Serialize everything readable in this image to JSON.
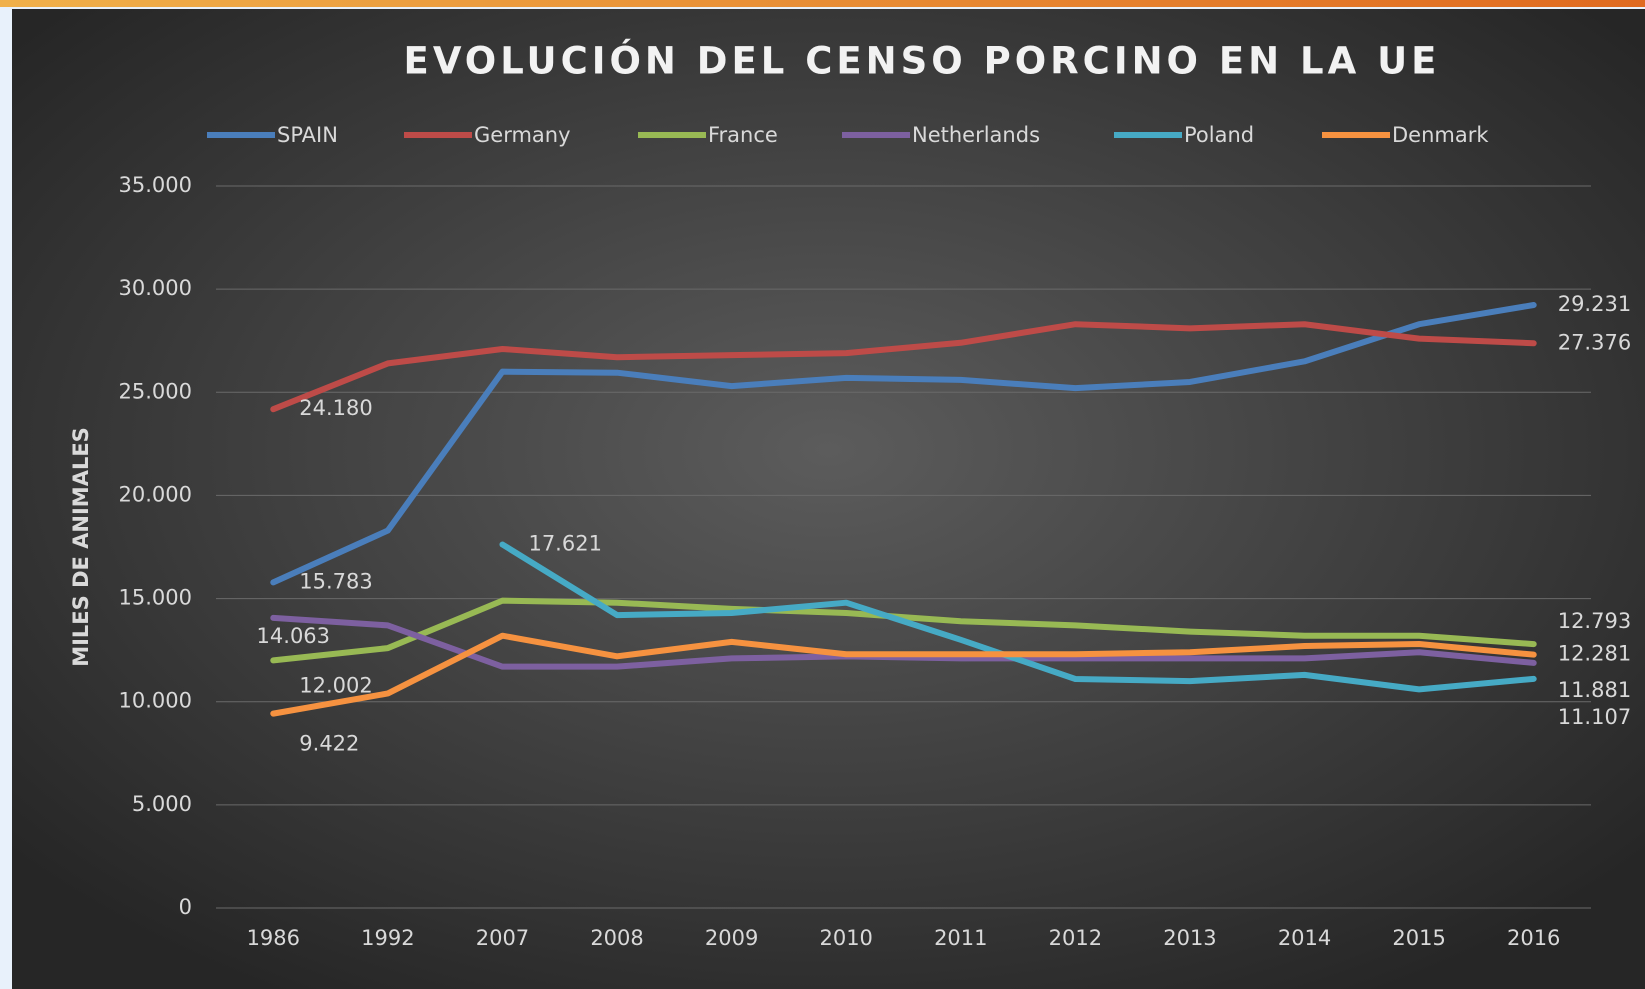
{
  "chart_data": {
    "type": "line",
    "title": "EVOLUCIÓN DEL CENSO PORCINO EN LA UE",
    "y_label": "MILES DE ANIMALES",
    "categories": [
      "1986",
      "1992",
      "2007",
      "2008",
      "2009",
      "2010",
      "2011",
      "2012",
      "2013",
      "2014",
      "2015",
      "2016"
    ],
    "series": [
      {
        "name": "SPAIN",
        "color": "#4a7ebb",
        "values": [
          15783,
          18300,
          26000,
          25950,
          25300,
          25700,
          25600,
          25200,
          25500,
          26500,
          28300,
          29231
        ],
        "value_labels": [
          "15.783",
          null,
          null,
          null,
          null,
          null,
          null,
          null,
          null,
          null,
          null,
          "29.231"
        ]
      },
      {
        "name": "Germany",
        "color": "#be4b48",
        "values": [
          24180,
          26400,
          27100,
          26700,
          26800,
          26900,
          27400,
          28300,
          28100,
          28300,
          27600,
          27376
        ],
        "value_labels": [
          "24.180",
          null,
          null,
          null,
          null,
          null,
          null,
          null,
          null,
          null,
          null,
          "27.376"
        ]
      },
      {
        "name": "France",
        "color": "#98b954",
        "values": [
          12002,
          12600,
          14900,
          14800,
          14500,
          14300,
          13900,
          13700,
          13400,
          13200,
          13200,
          12793
        ],
        "value_labels": [
          "12.002",
          null,
          null,
          null,
          null,
          null,
          null,
          null,
          null,
          null,
          null,
          "12.793"
        ]
      },
      {
        "name": "Netherlands",
        "color": "#7d60a0",
        "values": [
          14063,
          13700,
          11700,
          11700,
          12100,
          12200,
          12100,
          12100,
          12100,
          12100,
          12400,
          11881
        ],
        "value_labels": [
          "14.063",
          null,
          null,
          null,
          null,
          null,
          null,
          null,
          null,
          null,
          null,
          "11.881"
        ]
      },
      {
        "name": "Poland",
        "color": "#46aac5",
        "values": [
          null,
          null,
          17621,
          14200,
          14300,
          14800,
          13000,
          11100,
          11000,
          11300,
          10600,
          11107
        ],
        "value_labels": [
          null,
          null,
          "17.621",
          null,
          null,
          null,
          null,
          null,
          null,
          null,
          null,
          "11.107"
        ]
      },
      {
        "name": "Denmark",
        "color": "#f69240",
        "values": [
          9422,
          10400,
          13200,
          12200,
          12900,
          12300,
          12300,
          12300,
          12400,
          12700,
          12800,
          12281
        ],
        "value_labels": [
          "9.422",
          null,
          null,
          null,
          null,
          null,
          null,
          null,
          null,
          null,
          null,
          "12.281"
        ]
      }
    ],
    "ylim": [
      0,
      35000
    ],
    "yticks": [
      0,
      {
        "value": 5000,
        "label": "5.000"
      },
      {
        "value": 10000,
        "label": "10.000"
      },
      {
        "value": 15000,
        "label": "15.000"
      },
      {
        "value": 20000,
        "label": "20.000"
      },
      {
        "value": 25000,
        "label": "25.000"
      },
      {
        "value": 30000,
        "label": "30.000"
      },
      {
        "value": 35000,
        "label": "35.000"
      }
    ],
    "grid": true,
    "legend": "top"
  }
}
